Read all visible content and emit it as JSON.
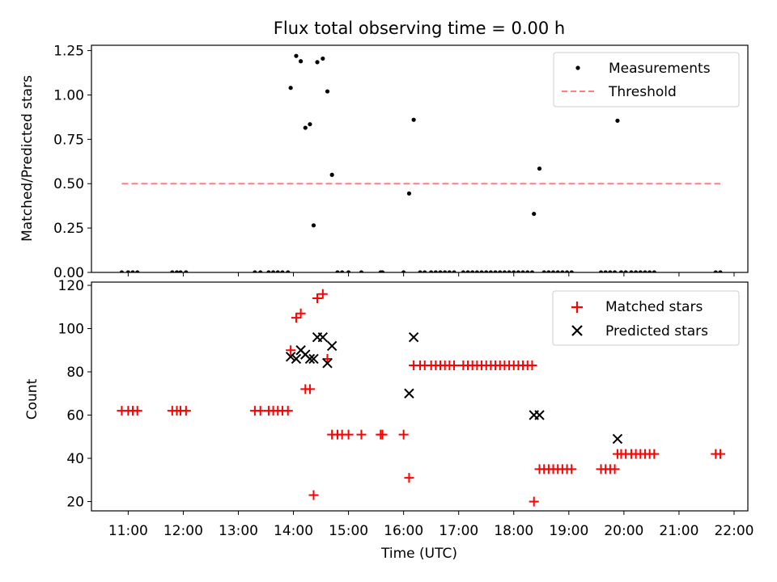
{
  "figure": {
    "title": "Flux total observing time = 0.00 h"
  },
  "chart_data": [
    {
      "type": "scatter",
      "panel": "top",
      "ylabel": "Matched/Predicted stars",
      "xlabel": "",
      "xlim": [
        "10:20",
        "22:15"
      ],
      "ylim": [
        0,
        1.28
      ],
      "yticks": [
        "0.00",
        "0.25",
        "0.50",
        "0.75",
        "1.00",
        "1.25"
      ],
      "grid": false,
      "legend_position": "top-right",
      "legend": [
        "Measurements",
        "Threshold"
      ],
      "series": [
        {
          "name": "Measurements",
          "kind": "scatter",
          "color": "#000000",
          "marker": "dot",
          "points": [
            [
              "10:53",
              0
            ],
            [
              "11:00",
              0
            ],
            [
              "11:05",
              0
            ],
            [
              "11:10",
              0
            ],
            [
              "11:48",
              0
            ],
            [
              "11:53",
              0
            ],
            [
              "11:57",
              0
            ],
            [
              "12:03",
              0
            ],
            [
              "13:18",
              0
            ],
            [
              "13:24",
              0
            ],
            [
              "13:33",
              0
            ],
            [
              "13:38",
              0
            ],
            [
              "13:43",
              0
            ],
            [
              "13:48",
              0
            ],
            [
              "13:54",
              0
            ],
            [
              "13:57",
              1.04
            ],
            [
              "14:03",
              1.22
            ],
            [
              "14:08",
              1.19
            ],
            [
              "14:13",
              0.815
            ],
            [
              "14:18",
              0.835
            ],
            [
              "14:22",
              0.265
            ],
            [
              "14:26",
              1.185
            ],
            [
              "14:32",
              1.205
            ],
            [
              "14:37",
              1.02
            ],
            [
              "14:42",
              0.55
            ],
            [
              "14:48",
              0
            ],
            [
              "14:53",
              0
            ],
            [
              "15:00",
              0
            ],
            [
              "15:14",
              0
            ],
            [
              "15:35",
              0
            ],
            [
              "15:37",
              0
            ],
            [
              "16:00",
              0
            ],
            [
              "16:06",
              0.445
            ],
            [
              "16:11",
              0.86
            ],
            [
              "16:18",
              0
            ],
            [
              "16:23",
              0
            ],
            [
              "16:30",
              0
            ],
            [
              "16:35",
              0
            ],
            [
              "16:40",
              0
            ],
            [
              "16:45",
              0
            ],
            [
              "16:50",
              0
            ],
            [
              "16:55",
              0
            ],
            [
              "17:05",
              0
            ],
            [
              "17:10",
              0
            ],
            [
              "17:15",
              0
            ],
            [
              "17:20",
              0
            ],
            [
              "17:25",
              0
            ],
            [
              "17:30",
              0
            ],
            [
              "17:35",
              0
            ],
            [
              "17:40",
              0
            ],
            [
              "17:45",
              0
            ],
            [
              "17:50",
              0
            ],
            [
              "17:55",
              0
            ],
            [
              "18:00",
              0
            ],
            [
              "18:05",
              0
            ],
            [
              "18:10",
              0
            ],
            [
              "18:15",
              0
            ],
            [
              "18:20",
              0
            ],
            [
              "18:22",
              0.33
            ],
            [
              "18:28",
              0.585
            ],
            [
              "18:33",
              0
            ],
            [
              "18:38",
              0
            ],
            [
              "18:43",
              0
            ],
            [
              "18:48",
              0
            ],
            [
              "18:53",
              0
            ],
            [
              "18:58",
              0
            ],
            [
              "19:03",
              0
            ],
            [
              "19:35",
              0
            ],
            [
              "19:40",
              0
            ],
            [
              "19:45",
              0
            ],
            [
              "19:50",
              0
            ],
            [
              "19:53",
              0.855
            ],
            [
              "19:57",
              0
            ],
            [
              "20:02",
              0
            ],
            [
              "20:08",
              0
            ],
            [
              "20:13",
              0
            ],
            [
              "20:18",
              0
            ],
            [
              "20:23",
              0
            ],
            [
              "20:28",
              0
            ],
            [
              "20:33",
              0
            ],
            [
              "21:40",
              0
            ],
            [
              "21:45",
              0
            ]
          ]
        },
        {
          "name": "Threshold",
          "kind": "line",
          "color": "#ff7f7f",
          "dash": "dashed",
          "points": [
            [
              "10:53",
              0.5
            ],
            [
              "21:45",
              0.5
            ]
          ]
        }
      ]
    },
    {
      "type": "scatter",
      "panel": "bottom",
      "ylabel": "Count",
      "xlabel": "Time (UTC)",
      "xlim": [
        "10:20",
        "22:15"
      ],
      "ylim": [
        15.7,
        121.5
      ],
      "yticks": [
        "20",
        "40",
        "60",
        "80",
        "100",
        "120"
      ],
      "xticks": [
        "11:00",
        "12:00",
        "13:00",
        "14:00",
        "15:00",
        "16:00",
        "17:00",
        "18:00",
        "19:00",
        "20:00",
        "21:00",
        "22:00"
      ],
      "grid": false,
      "legend_position": "top-right",
      "legend": [
        "Matched stars",
        "Predicted stars"
      ],
      "series": [
        {
          "name": "Matched stars",
          "kind": "scatter",
          "color": "#ff0000",
          "marker": "plus",
          "points": [
            [
              "10:53",
              62
            ],
            [
              "11:00",
              62
            ],
            [
              "11:05",
              62
            ],
            [
              "11:10",
              62
            ],
            [
              "11:48",
              62
            ],
            [
              "11:53",
              62
            ],
            [
              "11:57",
              62
            ],
            [
              "12:03",
              62
            ],
            [
              "13:18",
              62
            ],
            [
              "13:24",
              62
            ],
            [
              "13:33",
              62
            ],
            [
              "13:38",
              62
            ],
            [
              "13:43",
              62
            ],
            [
              "13:48",
              62
            ],
            [
              "13:54",
              62
            ],
            [
              "13:57",
              90
            ],
            [
              "14:03",
              105
            ],
            [
              "14:08",
              107
            ],
            [
              "14:13",
              72
            ],
            [
              "14:18",
              72
            ],
            [
              "14:22",
              23
            ],
            [
              "14:26",
              114
            ],
            [
              "14:32",
              116
            ],
            [
              "14:37",
              86
            ],
            [
              "14:42",
              51
            ],
            [
              "14:48",
              51
            ],
            [
              "14:53",
              51
            ],
            [
              "15:00",
              51
            ],
            [
              "15:14",
              51
            ],
            [
              "15:35",
              51
            ],
            [
              "15:37",
              51
            ],
            [
              "16:00",
              51
            ],
            [
              "16:06",
              31
            ],
            [
              "16:11",
              83
            ],
            [
              "16:18",
              83
            ],
            [
              "16:23",
              83
            ],
            [
              "16:30",
              83
            ],
            [
              "16:35",
              83
            ],
            [
              "16:40",
              83
            ],
            [
              "16:45",
              83
            ],
            [
              "16:50",
              83
            ],
            [
              "16:55",
              83
            ],
            [
              "17:05",
              83
            ],
            [
              "17:10",
              83
            ],
            [
              "17:15",
              83
            ],
            [
              "17:20",
              83
            ],
            [
              "17:25",
              83
            ],
            [
              "17:30",
              83
            ],
            [
              "17:35",
              83
            ],
            [
              "17:40",
              83
            ],
            [
              "17:45",
              83
            ],
            [
              "17:50",
              83
            ],
            [
              "17:55",
              83
            ],
            [
              "18:00",
              83
            ],
            [
              "18:05",
              83
            ],
            [
              "18:10",
              83
            ],
            [
              "18:15",
              83
            ],
            [
              "18:20",
              83
            ],
            [
              "18:22",
              20
            ],
            [
              "18:28",
              35
            ],
            [
              "18:33",
              35
            ],
            [
              "18:38",
              35
            ],
            [
              "18:43",
              35
            ],
            [
              "18:48",
              35
            ],
            [
              "18:53",
              35
            ],
            [
              "18:58",
              35
            ],
            [
              "19:03",
              35
            ],
            [
              "19:35",
              35
            ],
            [
              "19:40",
              35
            ],
            [
              "19:45",
              35
            ],
            [
              "19:50",
              35
            ],
            [
              "19:53",
              42
            ],
            [
              "19:57",
              42
            ],
            [
              "20:02",
              42
            ],
            [
              "20:08",
              42
            ],
            [
              "20:13",
              42
            ],
            [
              "20:18",
              42
            ],
            [
              "20:23",
              42
            ],
            [
              "20:28",
              42
            ],
            [
              "20:33",
              42
            ],
            [
              "21:40",
              42
            ],
            [
              "21:45",
              42
            ]
          ]
        },
        {
          "name": "Predicted stars",
          "kind": "scatter",
          "color": "#000000",
          "marker": "x",
          "points": [
            [
              "13:57",
              87
            ],
            [
              "14:03",
              86
            ],
            [
              "14:08",
              90
            ],
            [
              "14:13",
              88
            ],
            [
              "14:18",
              86
            ],
            [
              "14:22",
              86
            ],
            [
              "14:26",
              96
            ],
            [
              "14:32",
              96
            ],
            [
              "14:37",
              84
            ],
            [
              "14:42",
              92
            ],
            [
              "16:06",
              70
            ],
            [
              "16:11",
              96
            ],
            [
              "18:22",
              60
            ],
            [
              "18:28",
              60
            ],
            [
              "19:53",
              49
            ]
          ]
        }
      ]
    }
  ]
}
